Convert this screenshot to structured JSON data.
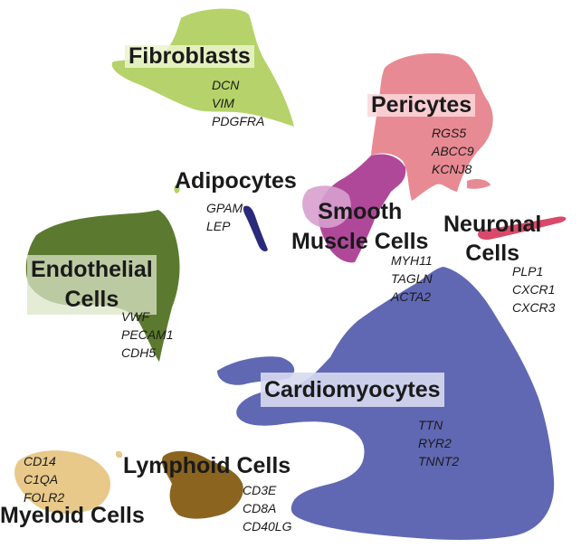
{
  "clusters": [
    {
      "id": "fibroblasts",
      "name": "Fibroblasts",
      "markers": [
        "DCN",
        "VIM",
        "PDGFRA"
      ],
      "color": "#b5d36a"
    },
    {
      "id": "pericytes",
      "name": "Pericytes",
      "markers": [
        "RGS5",
        "ABCC9",
        "KCNJ8"
      ],
      "color": "#e88a93"
    },
    {
      "id": "adipocytes",
      "name": "Adipocytes",
      "markers": [
        "GPAM",
        "LEP"
      ],
      "color": "#2a2a7a"
    },
    {
      "id": "smooth-muscle",
      "name_line1": "Smooth",
      "name_line2": "Muscle Cells",
      "markers": [
        "MYH11",
        "TAGLN",
        "ACTA2"
      ],
      "color": "#b0489a"
    },
    {
      "id": "neuronal",
      "name_line1": "Neuronal",
      "name_line2": "Cells",
      "markers": [
        "PLP1",
        "CXCR1",
        "CXCR3"
      ],
      "color": "#d94a6a"
    },
    {
      "id": "endothelial",
      "name_line1": "Endothelial",
      "name_line2": "Cells",
      "markers": [
        "VWF",
        "PECAM1",
        "CDH5"
      ],
      "color": "#5b7a2f"
    },
    {
      "id": "cardiomyocytes",
      "name": "Cardiomyocytes",
      "markers": [
        "TTN",
        "RYR2",
        "TNNT2"
      ],
      "color": "#6068b4"
    },
    {
      "id": "lymphoid",
      "name": "Lymphoid Cells",
      "markers": [
        "CD3E",
        "CD8A",
        "CD40LG"
      ],
      "color": "#8b6420"
    },
    {
      "id": "myeloid",
      "name": "Myeloid Cells",
      "markers": [
        "CD14",
        "C1QA",
        "FOLR2"
      ],
      "color": "#e8c98a"
    }
  ]
}
